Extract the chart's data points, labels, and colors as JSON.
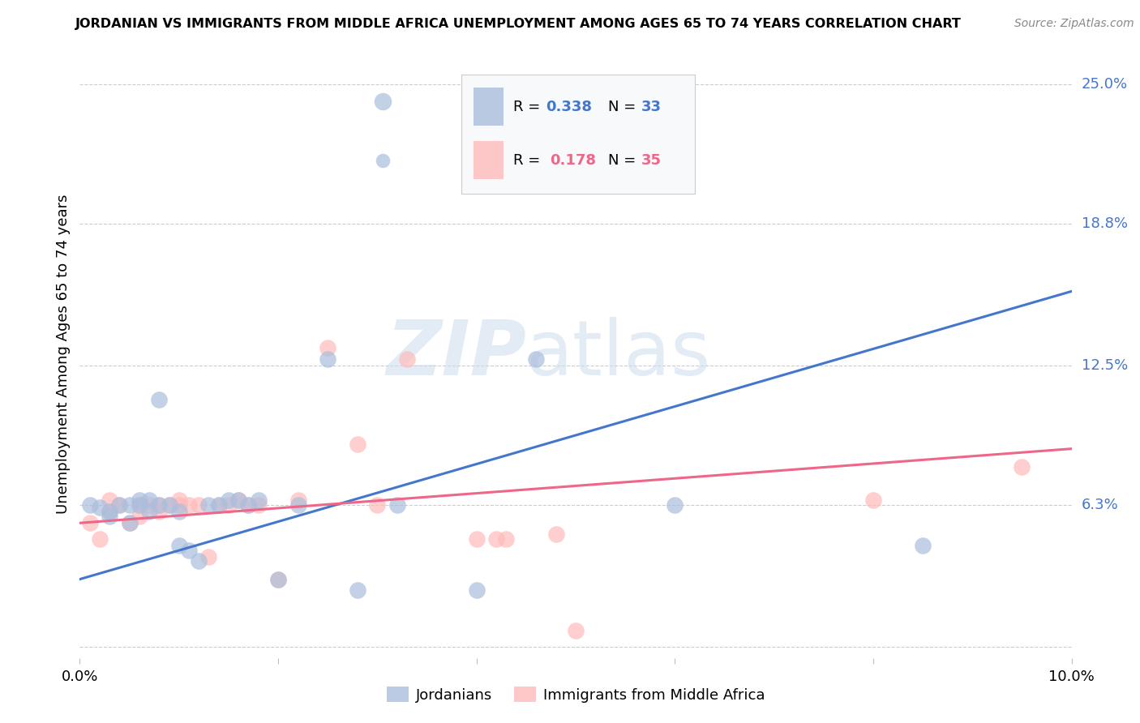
{
  "title": "JORDANIAN VS IMMIGRANTS FROM MIDDLE AFRICA UNEMPLOYMENT AMONG AGES 65 TO 74 YEARS CORRELATION CHART",
  "source": "Source: ZipAtlas.com",
  "ylabel": "Unemployment Among Ages 65 to 74 years",
  "xlim": [
    0.0,
    0.1
  ],
  "ylim": [
    -0.005,
    0.265
  ],
  "plot_ylim": [
    0.0,
    0.25
  ],
  "y_ticks_right": [
    0.063,
    0.125,
    0.188,
    0.25
  ],
  "y_tick_labels_right": [
    "6.3%",
    "12.5%",
    "18.8%",
    "25.0%"
  ],
  "blue_color": "#AABEDD",
  "pink_color": "#FFBBBB",
  "blue_line_color": "#4477CC",
  "pink_line_color": "#EE6688",
  "legend_label1": "Jordanians",
  "legend_label2": "Immigrants from Middle Africa",
  "blue_scatter_x": [
    0.001,
    0.002,
    0.003,
    0.003,
    0.004,
    0.005,
    0.005,
    0.006,
    0.006,
    0.007,
    0.007,
    0.008,
    0.008,
    0.009,
    0.01,
    0.01,
    0.011,
    0.012,
    0.013,
    0.014,
    0.015,
    0.016,
    0.017,
    0.018,
    0.02,
    0.022,
    0.025,
    0.028,
    0.032,
    0.04,
    0.046,
    0.06,
    0.085
  ],
  "blue_scatter_y": [
    0.063,
    0.062,
    0.058,
    0.06,
    0.063,
    0.055,
    0.063,
    0.063,
    0.065,
    0.06,
    0.065,
    0.063,
    0.11,
    0.063,
    0.06,
    0.045,
    0.043,
    0.038,
    0.063,
    0.063,
    0.065,
    0.065,
    0.063,
    0.065,
    0.03,
    0.063,
    0.128,
    0.025,
    0.063,
    0.025,
    0.128,
    0.063,
    0.045
  ],
  "pink_scatter_x": [
    0.001,
    0.002,
    0.003,
    0.003,
    0.004,
    0.005,
    0.006,
    0.006,
    0.007,
    0.008,
    0.008,
    0.009,
    0.01,
    0.01,
    0.011,
    0.012,
    0.013,
    0.014,
    0.015,
    0.016,
    0.017,
    0.018,
    0.02,
    0.022,
    0.025,
    0.028,
    0.03,
    0.033,
    0.04,
    0.042,
    0.043,
    0.048,
    0.05,
    0.08,
    0.095
  ],
  "pink_scatter_y": [
    0.055,
    0.048,
    0.06,
    0.065,
    0.063,
    0.055,
    0.058,
    0.063,
    0.063,
    0.063,
    0.06,
    0.063,
    0.063,
    0.065,
    0.063,
    0.063,
    0.04,
    0.063,
    0.063,
    0.065,
    0.063,
    0.063,
    0.03,
    0.065,
    0.133,
    0.09,
    0.063,
    0.128,
    0.048,
    0.048,
    0.048,
    0.05,
    0.007,
    0.065,
    0.08
  ],
  "blue_line_x": [
    0.0,
    0.1
  ],
  "blue_line_y": [
    0.03,
    0.158
  ],
  "pink_line_x": [
    0.0,
    0.1
  ],
  "pink_line_y": [
    0.055,
    0.088
  ],
  "background_color": "#ffffff",
  "grid_color": "#cccccc"
}
